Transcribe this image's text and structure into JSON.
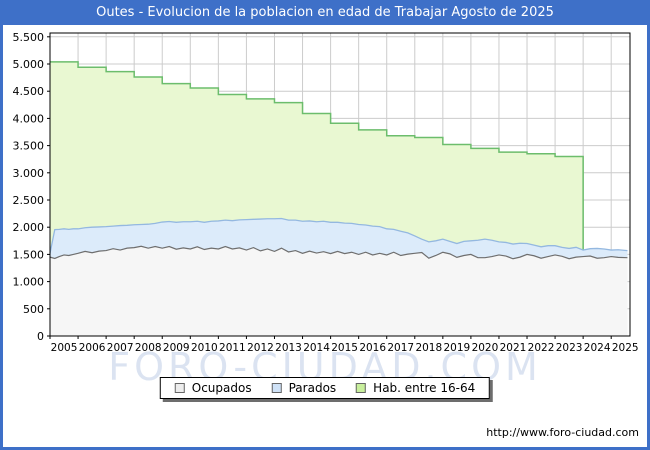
{
  "window": {
    "title": "Outes - Evolucion de la poblacion en edad de Trabajar Agosto de 2025"
  },
  "watermark": "FORO-CIUDAD.COM",
  "footer": {
    "url": "http://www.foro-ciudad.com"
  },
  "legend": {
    "items": [
      {
        "label": "Ocupados",
        "color": "#ededed"
      },
      {
        "label": "Parados",
        "color": "#cfe2f7"
      },
      {
        "label": "Hab. entre 16-64",
        "color": "#c8ef9c"
      }
    ]
  },
  "chart_data": {
    "type": "area",
    "title": "Outes - Evolucion de la poblacion en edad de Trabajar Agosto de 2025",
    "xlabel": "",
    "ylabel": "",
    "x_range": [
      2005,
      2025.67
    ],
    "y_range": [
      0,
      5570
    ],
    "grid": true,
    "legend_position": "bottom",
    "colors": {
      "grid": "#cccccc",
      "plot_border": "#000000",
      "frame_blue": "#3e70c8",
      "hab_fill": "#e9f8d2",
      "hab_stroke": "#6cbd6c",
      "parados_fill": "#dcebfa",
      "parados_stroke": "#94b8e0",
      "ocupados_fill": "#f6f6f6",
      "ocupados_stroke": "#6e6e6e"
    },
    "y_ticks": [
      {
        "v": 0,
        "label": "0"
      },
      {
        "v": 500,
        "label": "500"
      },
      {
        "v": 1000,
        "label": "1.000"
      },
      {
        "v": 1500,
        "label": "1.500"
      },
      {
        "v": 2000,
        "label": "2.000"
      },
      {
        "v": 2500,
        "label": "2.500"
      },
      {
        "v": 3000,
        "label": "3.000"
      },
      {
        "v": 3500,
        "label": "3.500"
      },
      {
        "v": 4000,
        "label": "4.000"
      },
      {
        "v": 4500,
        "label": "4.500"
      },
      {
        "v": 5000,
        "label": "5.000"
      },
      {
        "v": 5500,
        "label": "5.500"
      }
    ],
    "x_ticks": [
      "2005",
      "2006",
      "2007",
      "2008",
      "2009",
      "2010",
      "2011",
      "2012",
      "2013",
      "2014",
      "2015",
      "2016",
      "2017",
      "2018",
      "2019",
      "2020",
      "2021",
      "2022",
      "2023",
      "2024",
      "2025"
    ],
    "series": [
      {
        "name": "Hab. entre 16-64",
        "kind": "annual_steps",
        "ends_at": 2024.0,
        "points": [
          {
            "year": 2005,
            "value": 5040
          },
          {
            "year": 2006,
            "value": 4940
          },
          {
            "year": 2007,
            "value": 4860
          },
          {
            "year": 2008,
            "value": 4760
          },
          {
            "year": 2009,
            "value": 4640
          },
          {
            "year": 2010,
            "value": 4560
          },
          {
            "year": 2011,
            "value": 4440
          },
          {
            "year": 2012,
            "value": 4360
          },
          {
            "year": 2013,
            "value": 4290
          },
          {
            "year": 2014,
            "value": 4090
          },
          {
            "year": 2015,
            "value": 3910
          },
          {
            "year": 2016,
            "value": 3790
          },
          {
            "year": 2017,
            "value": 3680
          },
          {
            "year": 2018,
            "value": 3650
          },
          {
            "year": 2019,
            "value": 3520
          },
          {
            "year": 2020,
            "value": 3450
          },
          {
            "year": 2021,
            "value": 3380
          },
          {
            "year": 2022,
            "value": 3350
          },
          {
            "year": 2023,
            "value": 3300
          }
        ]
      },
      {
        "name": "Parados",
        "kind": "stacked_on_ocupados"
      },
      {
        "name": "Ocupados",
        "kind": "base"
      }
    ],
    "samples": {
      "x": [
        2005.0,
        2005.17,
        2005.33,
        2005.5,
        2005.67,
        2005.83,
        2006.0,
        2006.25,
        2006.5,
        2006.75,
        2007.0,
        2007.25,
        2007.5,
        2007.75,
        2008.0,
        2008.25,
        2008.5,
        2008.75,
        2009.0,
        2009.25,
        2009.5,
        2009.75,
        2010.0,
        2010.25,
        2010.5,
        2010.75,
        2011.0,
        2011.25,
        2011.5,
        2011.75,
        2012.0,
        2012.25,
        2012.5,
        2012.75,
        2013.0,
        2013.25,
        2013.5,
        2013.75,
        2014.0,
        2014.25,
        2014.5,
        2014.75,
        2015.0,
        2015.25,
        2015.5,
        2015.75,
        2016.0,
        2016.25,
        2016.5,
        2016.75,
        2017.0,
        2017.25,
        2017.5,
        2017.75,
        2018.0,
        2018.25,
        2018.5,
        2018.75,
        2019.0,
        2019.25,
        2019.5,
        2019.75,
        2020.0,
        2020.25,
        2020.5,
        2020.75,
        2021.0,
        2021.25,
        2021.5,
        2021.75,
        2022.0,
        2022.25,
        2022.5,
        2022.75,
        2023.0,
        2023.25,
        2023.5,
        2023.75,
        2024.0,
        2024.25,
        2024.5,
        2024.75,
        2025.0,
        2025.25,
        2025.58
      ],
      "ocupados": [
        1450,
        1425,
        1460,
        1490,
        1480,
        1500,
        1520,
        1555,
        1530,
        1560,
        1570,
        1605,
        1580,
        1615,
        1625,
        1650,
        1615,
        1645,
        1615,
        1645,
        1595,
        1620,
        1600,
        1640,
        1590,
        1615,
        1600,
        1645,
        1600,
        1620,
        1580,
        1625,
        1565,
        1600,
        1555,
        1615,
        1545,
        1570,
        1520,
        1560,
        1525,
        1550,
        1515,
        1555,
        1515,
        1540,
        1500,
        1540,
        1490,
        1520,
        1490,
        1540,
        1480,
        1505,
        1520,
        1535,
        1430,
        1480,
        1540,
        1510,
        1445,
        1480,
        1500,
        1440,
        1440,
        1460,
        1490,
        1470,
        1420,
        1450,
        1500,
        1475,
        1430,
        1460,
        1490,
        1465,
        1420,
        1450,
        1460,
        1470,
        1430,
        1440,
        1460,
        1445,
        1440
      ],
      "parados": [
        70,
        530,
        500,
        480,
        480,
        470,
        450,
        435,
        470,
        445,
        440,
        415,
        450,
        420,
        420,
        400,
        440,
        425,
        480,
        460,
        495,
        480,
        500,
        470,
        500,
        495,
        515,
        485,
        520,
        515,
        560,
        520,
        585,
        555,
        600,
        545,
        585,
        560,
        590,
        555,
        575,
        560,
        575,
        535,
        560,
        530,
        550,
        500,
        530,
        490,
        480,
        420,
        445,
        390,
        320,
        245,
        300,
        270,
        240,
        230,
        255,
        260,
        250,
        320,
        340,
        300,
        240,
        250,
        270,
        255,
        200,
        195,
        210,
        200,
        170,
        165,
        190,
        180,
        120,
        135,
        180,
        160,
        120,
        140,
        130
      ]
    }
  }
}
